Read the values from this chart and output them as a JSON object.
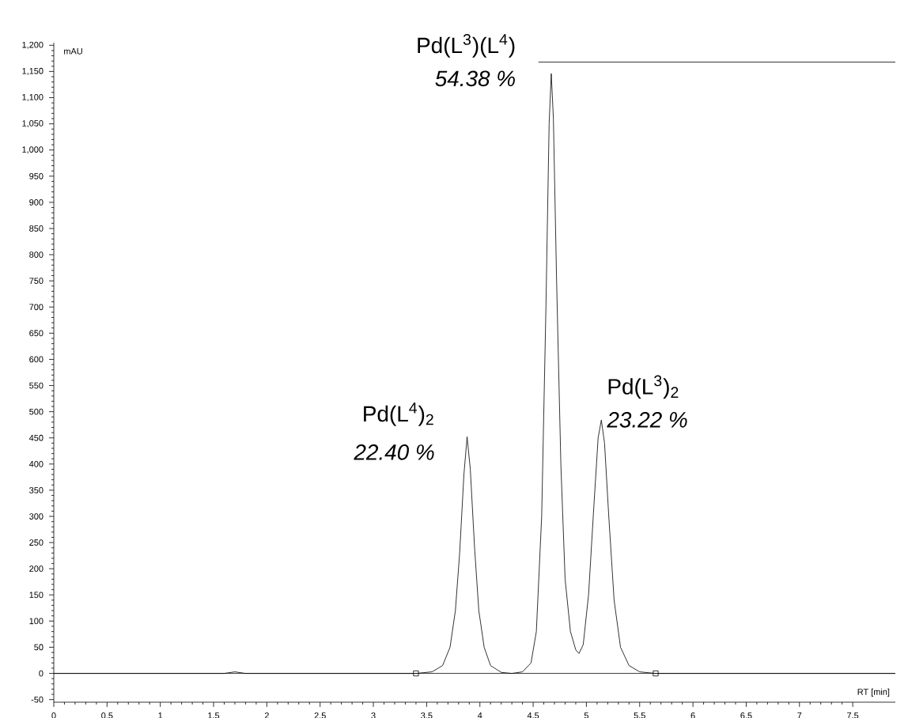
{
  "chart_data": {
    "type": "line",
    "xlabel": "RT [min]",
    "ylabel": "mAU",
    "xlim": [
      0,
      7.9
    ],
    "ylim": [
      -55,
      1205
    ],
    "xticks": [
      0,
      0.5,
      1,
      1.5,
      2,
      2.5,
      3,
      3.5,
      4,
      4.5,
      5,
      5.5,
      6,
      6.5,
      7,
      7.5
    ],
    "yticks": [
      -50,
      0,
      50,
      100,
      150,
      200,
      250,
      300,
      350,
      400,
      450,
      500,
      550,
      600,
      650,
      700,
      750,
      800,
      850,
      900,
      950,
      {
        "value": 1000,
        "label": "1,000"
      },
      {
        "value": 1050,
        "label": "1,050"
      },
      {
        "value": 1100,
        "label": "1,100"
      },
      {
        "value": 1150,
        "label": "1,150"
      },
      {
        "value": 1200,
        "label": "1,200"
      }
    ],
    "grid": false,
    "series": [
      {
        "color": "#000000",
        "marker": "none",
        "x": [
          0,
          1.6,
          1.7,
          1.8,
          3.4,
          3.55,
          3.65,
          3.72,
          3.77,
          3.81,
          3.85,
          3.88,
          3.91,
          3.95,
          3.99,
          4.04,
          4.1,
          4.2,
          4.3,
          4.4,
          4.48,
          4.53,
          4.58,
          4.62,
          4.65,
          4.67,
          4.69,
          4.72,
          4.76,
          4.8,
          4.85,
          4.9,
          4.93,
          4.97,
          5.02,
          5.07,
          5.11,
          5.14,
          5.17,
          5.21,
          5.26,
          5.32,
          5.4,
          5.5,
          5.65,
          7.9
        ],
        "values": [
          0,
          0,
          3,
          0,
          0,
          3,
          15,
          50,
          120,
          230,
          380,
          452,
          390,
          240,
          120,
          50,
          15,
          2,
          0,
          3,
          20,
          80,
          300,
          700,
          1050,
          1146,
          1060,
          750,
          400,
          180,
          80,
          45,
          38,
          55,
          150,
          320,
          450,
          484,
          440,
          300,
          140,
          50,
          15,
          3,
          0,
          0
        ]
      },
      {
        "type": "scatter",
        "color": "#000000",
        "marker": "square",
        "x": [
          3.4,
          5.65
        ],
        "values": [
          0,
          0
        ]
      }
    ],
    "ref_lines": [
      {
        "axis": "y",
        "value": 0,
        "color": "#000000"
      },
      {
        "axis": "y",
        "value": 1168,
        "color": "#000000"
      }
    ],
    "annotations": [
      {
        "text": "Pd(L$^{3}$)(L$^{4}$)",
        "x": 4.67,
        "y": 1146
      },
      {
        "text": "54.38 %",
        "x": 4.67,
        "y": 1146
      },
      {
        "text": "Pd(L$^{4}$)$_{2}$",
        "x": 3.88,
        "y": 452
      },
      {
        "text": "22.40 %",
        "x": 3.88,
        "y": 452
      },
      {
        "text": "Pd(L$^{3}$)$_{2}$",
        "x": 5.14,
        "y": 484
      },
      {
        "text": "23.22 %",
        "x": 5.14,
        "y": 484
      }
    ]
  }
}
